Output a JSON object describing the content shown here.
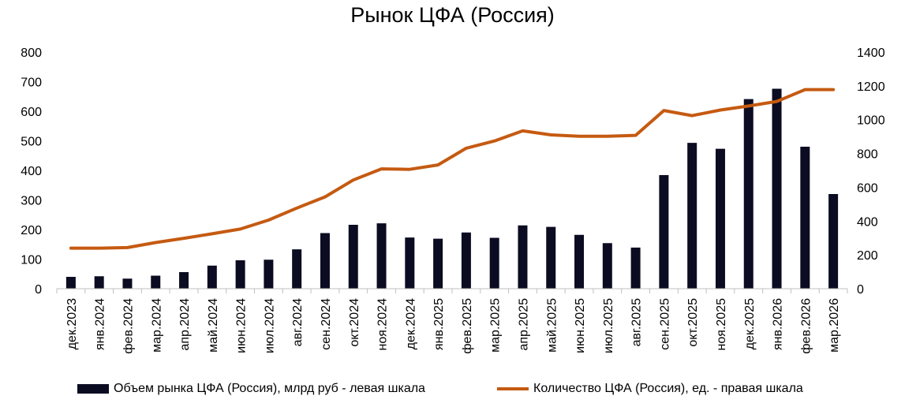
{
  "chart_data": {
    "type": "bar+line",
    "title": "Рынок ЦФА (Россия)",
    "categories": [
      "дек.2023",
      "янв.2024",
      "фев.2024",
      "мар.2024",
      "апр.2024",
      "май.2024",
      "июн.2024",
      "июл.2024",
      "авг.2024",
      "сен.2024",
      "окт.2024",
      "ноя.2024",
      "дек.2024",
      "янв.2025",
      "фев.2025",
      "мар.2025",
      "апр.2025",
      "май.2025",
      "июн.2025",
      "июл.2025",
      "авг.2025",
      "сен.2025",
      "окт.2025",
      "ноя.2025",
      "дек.2025",
      "янв.2026",
      "фев.2026",
      "мар.2026"
    ],
    "series": [
      {
        "name": "Объем рынка ЦФА (Россия), млрд руб - левая шкала",
        "type": "bar",
        "axis": "left",
        "color": "#0b0b22",
        "values": [
          40,
          42,
          34,
          44,
          56,
          78,
          96,
          98,
          133,
          188,
          216,
          221,
          173,
          169,
          190,
          172,
          214,
          209,
          182,
          154,
          139,
          384,
          493,
          473,
          641,
          676,
          480,
          320
        ]
      },
      {
        "name": "Количество ЦФА (Россия), ед. - правая шкала",
        "type": "line",
        "axis": "right",
        "color": "#c55a11",
        "values": [
          240,
          240,
          243,
          273,
          298,
          325,
          353,
          406,
          477,
          543,
          643,
          709,
          706,
          732,
          831,
          874,
          934,
          910,
          902,
          902,
          907,
          1054,
          1024,
          1057,
          1081,
          1108,
          1178,
          1178
        ]
      }
    ],
    "y_left": {
      "min": 0,
      "max": 800,
      "step": 100,
      "ticks": [
        "0",
        "100",
        "200",
        "300",
        "400",
        "500",
        "600",
        "700",
        "800"
      ]
    },
    "y_right": {
      "min": 0,
      "max": 1400,
      "step": 200,
      "ticks": [
        "0",
        "200",
        "400",
        "600",
        "800",
        "1000",
        "1200",
        "1400"
      ]
    },
    "grid": false,
    "legend_position": "bottom"
  }
}
